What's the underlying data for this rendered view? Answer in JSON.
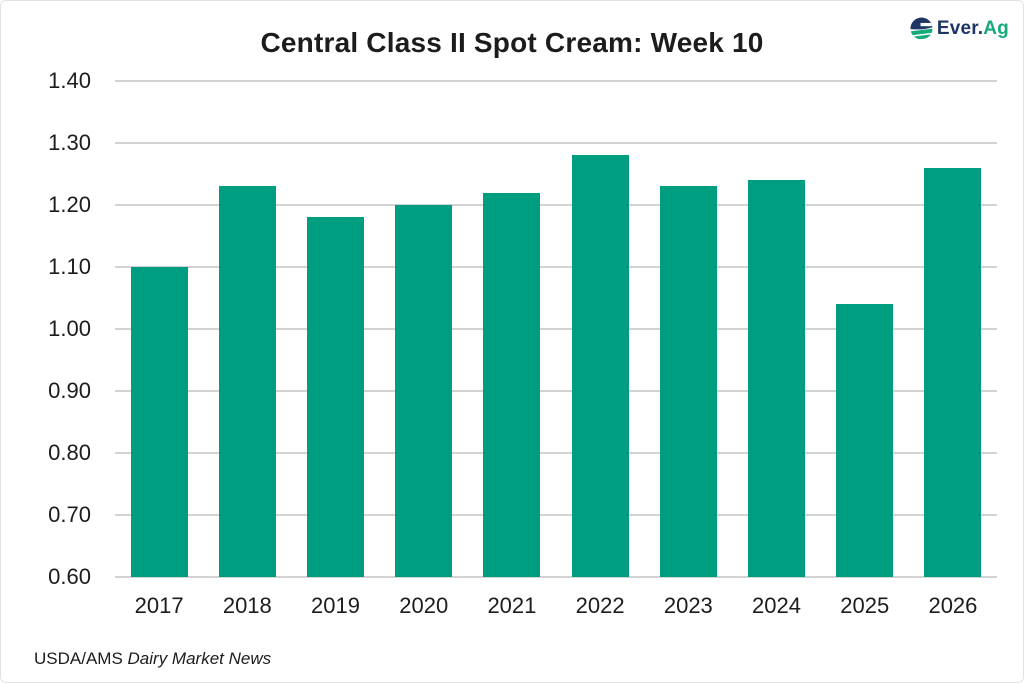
{
  "title": "Central Class II Spot Cream: Week 10",
  "logo": {
    "icon": "ever-ag-globe-icon",
    "text_primary": "Ever.",
    "text_accent": "Ag"
  },
  "footer": {
    "source": "USDA/AMS",
    "publication": "Dairy Market News"
  },
  "colors": {
    "bar": "#009e81",
    "gridline": "#d2d2d2",
    "text": "#1c1c1c",
    "logo_navy": "#1f3566",
    "logo_green": "#16a97c"
  },
  "chart_data": {
    "type": "bar",
    "title": "Central Class II Spot Cream: Week 10",
    "categories": [
      "2017",
      "2018",
      "2019",
      "2020",
      "2021",
      "2022",
      "2023",
      "2024",
      "2025",
      "2026"
    ],
    "values": [
      1.1,
      1.23,
      1.18,
      1.2,
      1.22,
      1.28,
      1.23,
      1.24,
      1.04,
      1.26
    ],
    "xlabel": "",
    "ylabel": "",
    "ylim": [
      0.6,
      1.4
    ],
    "ytick_step": 0.1,
    "yticks": [
      "1.40",
      "1.30",
      "1.20",
      "1.10",
      "1.00",
      "0.90",
      "0.80",
      "0.70",
      "0.60"
    ],
    "grid": true,
    "legend": false,
    "bar_color": "#009e81",
    "source_note": "USDA/AMS Dairy Market News"
  }
}
